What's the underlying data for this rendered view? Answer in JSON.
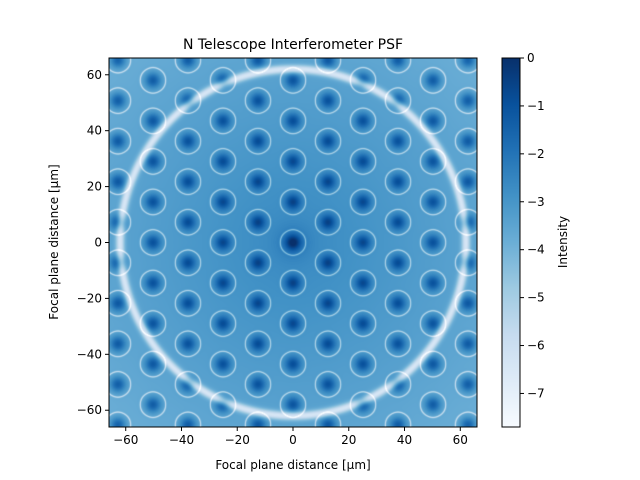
{
  "chart_data": {
    "type": "heatmap",
    "title": "N Telescope Interferometer PSF",
    "xlabel": "Focal plane distance [μm]",
    "ylabel": "Focal plane distance [μm]",
    "xlim": [
      -66,
      66
    ],
    "ylim": [
      -66,
      66
    ],
    "x_ticks": [
      -60,
      -40,
      -20,
      0,
      20,
      40,
      60
    ],
    "y_ticks": [
      -60,
      -40,
      -20,
      0,
      20,
      40,
      60
    ],
    "x_tick_labels": [
      "−60",
      "−40",
      "−20",
      "0",
      "20",
      "40",
      "60"
    ],
    "y_tick_labels": [
      "−60",
      "−40",
      "−20",
      "0",
      "20",
      "40",
      "60"
    ],
    "colorbar": {
      "label": "Intensity",
      "range": [
        -7.7,
        0
      ],
      "ticks": [
        0,
        -1,
        -2,
        -3,
        -4,
        -5,
        -6,
        -7
      ],
      "tick_labels": [
        "0",
        "−1",
        "−2",
        "−3",
        "−4",
        "−5",
        "−6",
        "−7"
      ],
      "colormap": "Blues"
    },
    "ring_radius": 62,
    "lattice_spacing": 14.5,
    "grid": false
  }
}
